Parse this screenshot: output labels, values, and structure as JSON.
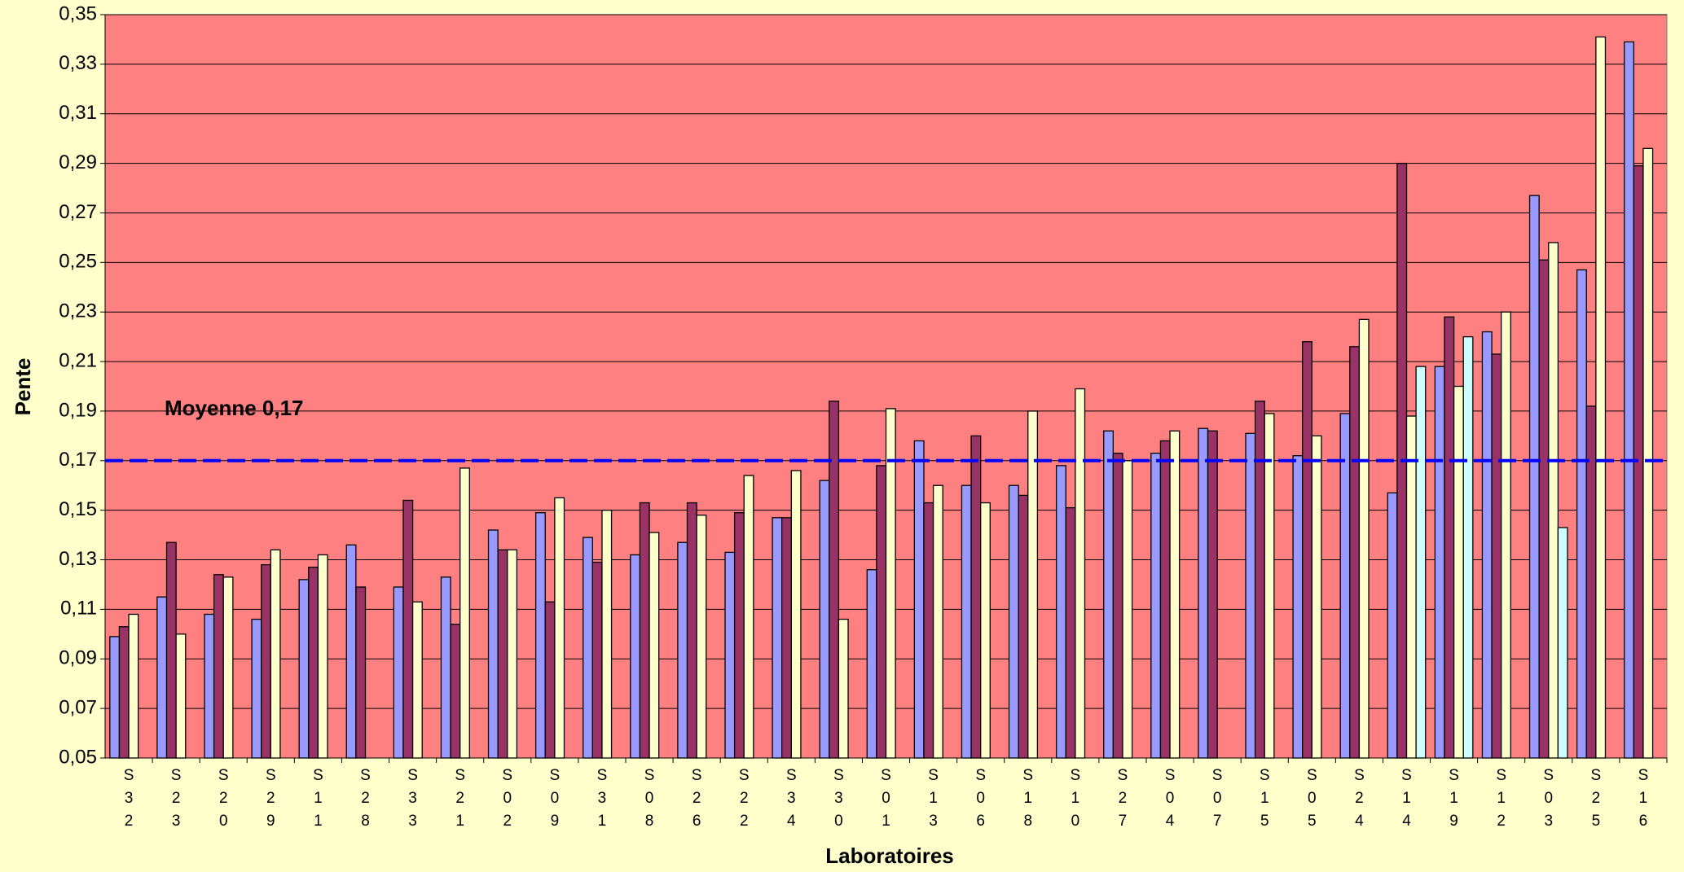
{
  "chart_data": {
    "type": "bar",
    "x_label": "Laboratoires",
    "y_label": "Pente",
    "annotation": "Moyenne 0,17",
    "mean_line": 0.17,
    "mean_line_color": "#0000ff",
    "plot_background": "#ff8080",
    "grid": true,
    "ylim": [
      0.05,
      0.35
    ],
    "yticks": [
      {
        "value": 0.05,
        "label": "0,05"
      },
      {
        "value": 0.07,
        "label": "0,07"
      },
      {
        "value": 0.09,
        "label": "0,09"
      },
      {
        "value": 0.11,
        "label": "0,11"
      },
      {
        "value": 0.13,
        "label": "0,13"
      },
      {
        "value": 0.15,
        "label": "0,15"
      },
      {
        "value": 0.17,
        "label": "0,17"
      },
      {
        "value": 0.19,
        "label": "0,19"
      },
      {
        "value": 0.21,
        "label": "0,21"
      },
      {
        "value": 0.23,
        "label": "0,23"
      },
      {
        "value": 0.25,
        "label": "0,25"
      },
      {
        "value": 0.27,
        "label": "0,27"
      },
      {
        "value": 0.29,
        "label": "0,29"
      },
      {
        "value": 0.31,
        "label": "0,31"
      },
      {
        "value": 0.33,
        "label": "0,33"
      },
      {
        "value": 0.35,
        "label": "0,35"
      }
    ],
    "categories": [
      "S32",
      "S23",
      "S20",
      "S29",
      "S11",
      "S28",
      "S33",
      "S21",
      "S02",
      "S09",
      "S31",
      "S08",
      "S26",
      "S22",
      "S34",
      "S30",
      "S01",
      "S13",
      "S06",
      "S18",
      "S10",
      "S27",
      "S04",
      "S07",
      "S15",
      "S05",
      "S24",
      "S14",
      "S19",
      "S12",
      "S03",
      "S25",
      "S16"
    ],
    "series": [
      {
        "color": "#9999ff",
        "values": [
          0.099,
          0.115,
          0.108,
          0.106,
          0.122,
          0.136,
          0.119,
          0.123,
          0.142,
          0.149,
          0.139,
          0.132,
          0.137,
          0.133,
          0.147,
          0.162,
          0.126,
          0.178,
          0.16,
          0.16,
          0.168,
          0.182,
          0.173,
          0.183,
          0.181,
          0.172,
          0.189,
          0.157,
          0.208,
          0.222,
          0.277,
          0.247,
          0.339
        ]
      },
      {
        "color": "#993366",
        "values": [
          0.103,
          0.137,
          0.124,
          0.128,
          0.127,
          0.119,
          0.154,
          0.104,
          0.134,
          0.113,
          0.129,
          0.153,
          0.153,
          0.149,
          0.147,
          0.194,
          0.168,
          0.153,
          0.18,
          0.156,
          0.151,
          0.173,
          0.178,
          0.182,
          0.194,
          0.218,
          0.216,
          0.29,
          0.228,
          0.213,
          0.251,
          0.192,
          0.289
        ]
      },
      {
        "color": "#ffffcc",
        "values": [
          0.108,
          0.1,
          0.123,
          0.134,
          0.132,
          null,
          0.113,
          0.167,
          0.134,
          0.155,
          0.15,
          0.141,
          0.148,
          0.164,
          0.166,
          0.106,
          0.191,
          0.16,
          0.153,
          0.19,
          0.199,
          0.17,
          0.182,
          null,
          0.189,
          0.18,
          0.227,
          0.188,
          0.2,
          0.23,
          0.258,
          0.341,
          0.296
        ]
      },
      {
        "color": "#ccffff",
        "values": [
          null,
          null,
          null,
          null,
          null,
          null,
          null,
          null,
          null,
          null,
          null,
          null,
          null,
          null,
          null,
          null,
          null,
          null,
          null,
          null,
          null,
          null,
          null,
          null,
          null,
          null,
          null,
          0.208,
          0.22,
          null,
          0.143,
          null,
          null
        ]
      }
    ]
  }
}
